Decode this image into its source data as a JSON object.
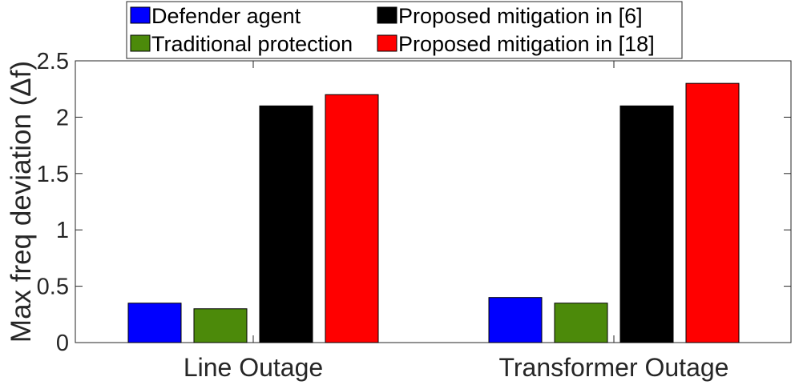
{
  "chart_data": {
    "type": "bar",
    "categories": [
      "Line Outage",
      "Transformer Outage"
    ],
    "series": [
      {
        "name": "Defender agent",
        "color": "#0000ff",
        "values": [
          0.35,
          0.4
        ]
      },
      {
        "name": "Traditional protection",
        "color": "#4c8a0a",
        "values": [
          0.3,
          0.35
        ]
      },
      {
        "name": "Proposed mitigation in [6]",
        "color": "#000000",
        "values": [
          2.1,
          2.1
        ]
      },
      {
        "name": "Proposed mitigation in [18]",
        "color": "#ff0000",
        "values": [
          2.2,
          2.3
        ]
      }
    ],
    "ylabel": "Max freq deviation (Δf)",
    "ylim": [
      0,
      2.5
    ],
    "yticks": [
      0,
      0.5,
      1,
      1.5,
      2,
      2.5
    ],
    "ytick_labels": [
      "0",
      "0.5",
      "1",
      "1.5",
      "2",
      "2.5"
    ],
    "legend_position": "top",
    "grid": false
  }
}
